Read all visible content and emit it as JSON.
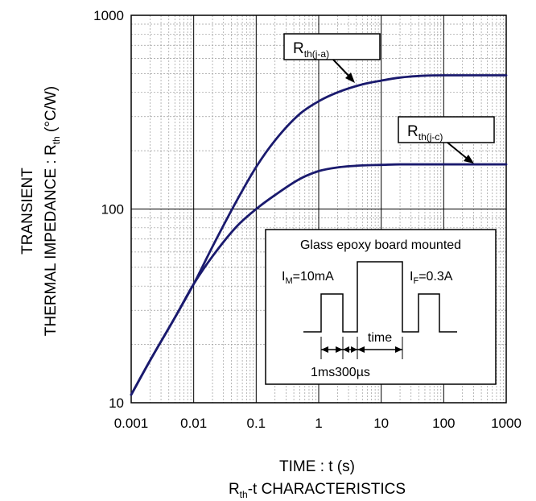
{
  "chart_data": {
    "type": "line",
    "x_scale": "log",
    "y_scale": "log",
    "xlim": [
      0.001,
      1000
    ],
    "ylim": [
      10,
      1000
    ],
    "x_tick_labels": [
      "0.001",
      "0.01",
      "0.1",
      "1",
      "10",
      "100",
      "1000"
    ],
    "y_tick_labels": [
      "10",
      "100",
      "1000"
    ],
    "xlabel": "TIME : t (s)",
    "ylabel_line1": "TRANSIENT",
    "ylabel_line2_main": "THERMAL IMPEDANCE : R",
    "ylabel_line2_sub": "th",
    "ylabel_line2_unit": " (°C/W)",
    "caption_main": "R",
    "caption_sub": "th",
    "caption_rest": "-t CHARACTERISTICS",
    "grid": true,
    "series": [
      {
        "name_main": "R",
        "name_sub": "th(j-a)",
        "x": [
          0.001,
          0.002,
          0.005,
          0.01,
          0.02,
          0.05,
          0.1,
          0.2,
          0.5,
          1,
          2,
          5,
          10,
          20,
          50,
          100,
          200,
          500,
          1000
        ],
        "y": [
          11,
          16.5,
          27.5,
          41,
          64,
          112,
          165,
          226,
          310,
          360,
          400,
          440,
          460,
          477,
          488,
          490,
          490,
          490,
          490
        ]
      },
      {
        "name_main": "R",
        "name_sub": "th(j-c)",
        "x": [
          0.001,
          0.002,
          0.005,
          0.01,
          0.02,
          0.05,
          0.1,
          0.2,
          0.5,
          1,
          2,
          5,
          10,
          20,
          50,
          100,
          200,
          500,
          1000
        ],
        "y": [
          11,
          16.5,
          27.5,
          41,
          57,
          82,
          100,
          118,
          143,
          157,
          164,
          168,
          169,
          170,
          170,
          170,
          170,
          170,
          170
        ]
      }
    ]
  },
  "inset": {
    "title": "Glass epoxy board mounted",
    "im_main": "I",
    "im_sub": "M",
    "im_value": "=10mA",
    "if_main": "I",
    "if_sub": "F",
    "if_value": "=0.3A",
    "time_label": "time",
    "t1_label": "1ms",
    "t2_label": "300µs"
  }
}
